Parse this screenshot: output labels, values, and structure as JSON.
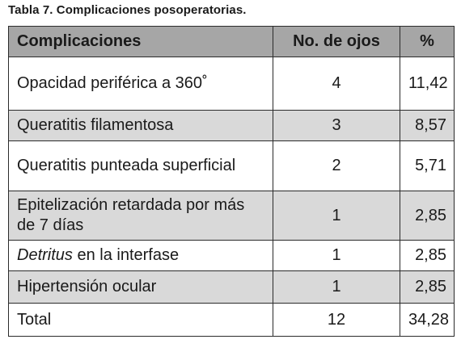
{
  "caption": "Tabla 7. Complicaciones posoperatorias.",
  "table": {
    "headers": [
      "Complicaciones",
      "No. de ojos",
      "%"
    ],
    "rows": [
      {
        "complication": "Opacidad periférica a 360˚",
        "eyes": "4",
        "percent": "11,42"
      },
      {
        "complication": "Queratitis filamentosa",
        "eyes": "3",
        "percent": "8,57"
      },
      {
        "complication": "Queratitis punteada superficial",
        "eyes": "2",
        "percent": "5,71"
      },
      {
        "complication": "Epitelización retardada por más de 7 días",
        "eyes": "1",
        "percent": "2,85"
      },
      {
        "complication_italic": "Detritus",
        "complication_rest": " en la interfase",
        "eyes": "1",
        "percent": "2,85"
      },
      {
        "complication": "Hipertensión ocular",
        "eyes": "1",
        "percent": "2,85"
      },
      {
        "complication": "Total",
        "eyes": "12",
        "percent": "34,28"
      }
    ]
  },
  "colors": {
    "header_bg": "#a6a6a6",
    "shaded_row_bg": "#d9d9d9",
    "border": "#2b2b2b"
  }
}
